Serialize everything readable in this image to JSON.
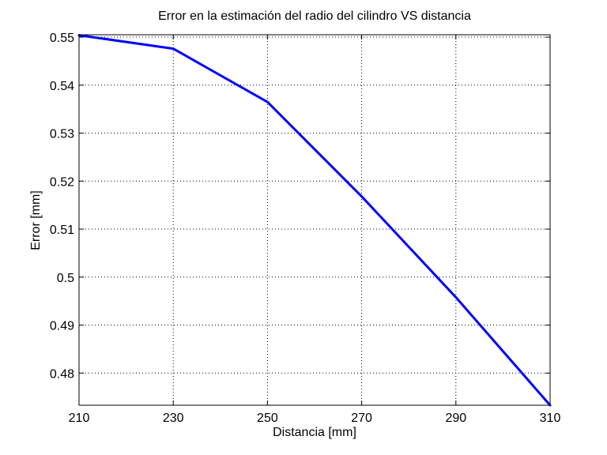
{
  "chart_data": {
    "type": "line",
    "title": "Error en la estimación del radio del cilindro VS distancia",
    "xlabel": "Distancia [mm]",
    "ylabel": "Error [mm]",
    "xlim": [
      210,
      310
    ],
    "ylim": [
      0.4733,
      0.5505
    ],
    "x_ticks": [
      210,
      230,
      250,
      270,
      290,
      310
    ],
    "x_tick_labels": [
      "210",
      "230",
      "250",
      "270",
      "290",
      "310"
    ],
    "y_ticks": [
      0.48,
      0.49,
      0.5,
      0.51,
      0.52,
      0.53,
      0.54,
      0.55
    ],
    "y_tick_labels": [
      "0.48",
      "0.49",
      "0.5",
      "0.51",
      "0.52",
      "0.53",
      "0.54",
      "0.55"
    ],
    "grid": true,
    "grid_style": "dotted",
    "series": [
      {
        "color": "#0000ff",
        "x": [
          210,
          230,
          250,
          270,
          290,
          310
        ],
        "y": [
          0.5504,
          0.5476,
          0.5365,
          0.5168,
          0.4958,
          0.4733
        ]
      }
    ]
  }
}
